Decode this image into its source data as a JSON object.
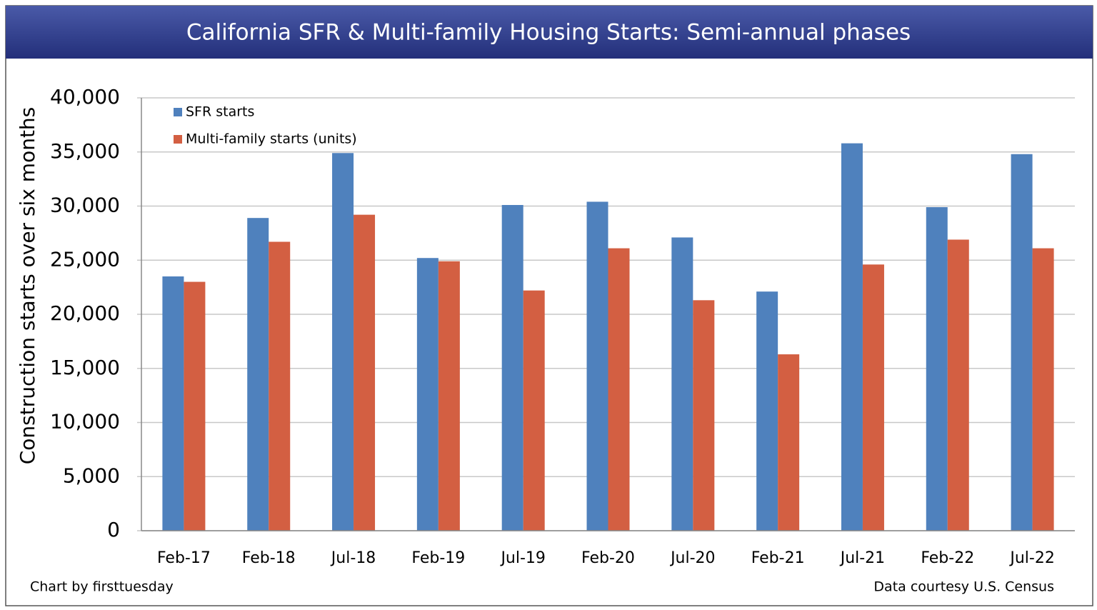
{
  "chart_data": {
    "type": "bar",
    "title": "California SFR & Multi-family Housing Starts: Semi-annual phases",
    "y_label": "Construction starts over six months",
    "categories": [
      "Feb-17",
      "Feb-18",
      "Jul-18",
      "Feb-19",
      "Jul-19",
      "Feb-20",
      "Jul-20",
      "Feb-21",
      "Jul-21",
      "Feb-22",
      "Jul-22"
    ],
    "series": [
      {
        "name": "SFR starts",
        "color": "#4f81bd",
        "values": [
          23500,
          28900,
          34900,
          25200,
          30100,
          30400,
          27100,
          22100,
          35800,
          29900,
          34800
        ]
      },
      {
        "name": "Multi-family starts (units)",
        "color": "#d35f42",
        "values": [
          23000,
          26700,
          29200,
          24900,
          22200,
          26100,
          21300,
          16300,
          24600,
          26900,
          26100
        ]
      }
    ],
    "ylim": [
      0,
      40000
    ],
    "yticks": [
      0,
      {
        "value": 5000,
        "label": "5,000"
      },
      {
        "value": 10000,
        "label": "10,000"
      },
      {
        "value": 15000,
        "label": "15,000"
      },
      {
        "value": 20000,
        "label": "20,000"
      },
      {
        "value": 25000,
        "label": "25,000"
      },
      {
        "value": 30000,
        "label": "30,000"
      },
      {
        "value": 35000,
        "label": "35,000"
      },
      {
        "value": 40000,
        "label": "40,000"
      }
    ],
    "grid": true,
    "legend": "upper-left",
    "source_left": "Chart by firsttuesday",
    "source_right": "Data courtesy U.S. Census"
  }
}
